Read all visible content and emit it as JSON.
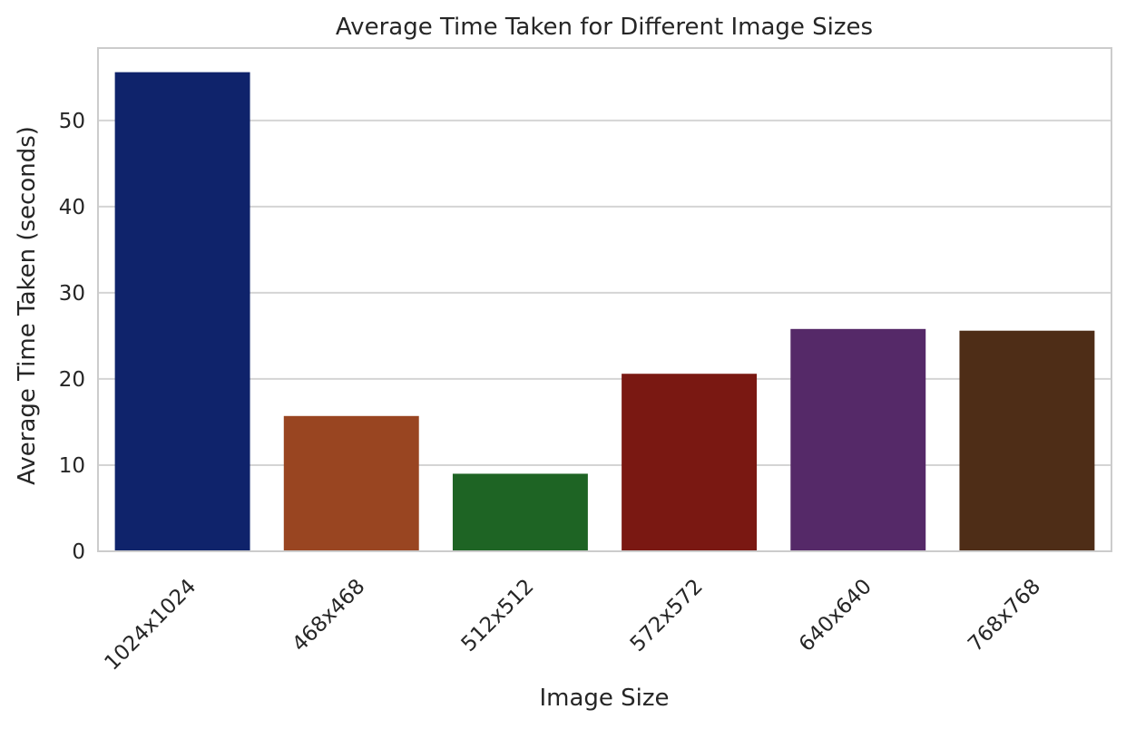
{
  "chart_data": {
    "type": "bar",
    "title": "Average Time Taken for Different Image Sizes",
    "xlabel": "Image Size",
    "ylabel": "Average Time Taken (seconds)",
    "categories": [
      "1024x1024",
      "468x468",
      "512x512",
      "572x572",
      "640x640",
      "768x768"
    ],
    "values": [
      55.6,
      15.7,
      9.0,
      20.6,
      25.8,
      25.6
    ],
    "colors": [
      "#0f236b",
      "#994521",
      "#1e6424",
      "#7a1812",
      "#552968",
      "#4e2d17"
    ],
    "ylim": [
      0,
      58.4
    ],
    "yticks": [
      0,
      10,
      20,
      30,
      40,
      50
    ],
    "grid": true,
    "legend": "none"
  }
}
